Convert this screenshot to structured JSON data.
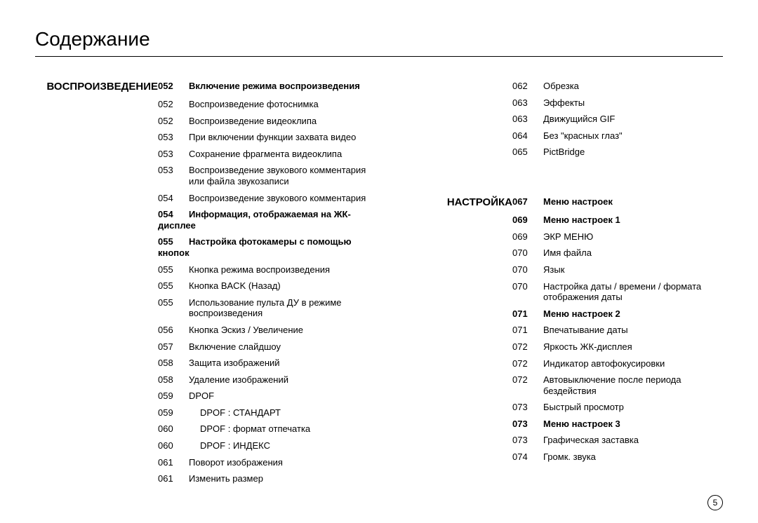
{
  "title": "Содержание",
  "page_number": "5",
  "columns": [
    {
      "rows": [
        {
          "section": "ВОСПРОИЗВЕДЕНИЕ",
          "num": "052",
          "text": "Включение режима воспроизведения",
          "bold": true
        },
        {
          "num": "052",
          "text": "Воспроизведение фотоснимка"
        },
        {
          "num": "052",
          "text": "Воспроизведение видеоклипа"
        },
        {
          "num": "053",
          "text": "При включении функции захвата видео"
        },
        {
          "num": "053",
          "text": "Сохранение фрагмента видеоклипа"
        },
        {
          "num": "053",
          "text": "Воспроизведение звукового комментария или файла звукозаписи"
        },
        {
          "num": "054",
          "text": "Воспроизведение звукового комментария"
        },
        {
          "num": "054",
          "text": "Информация, отображаемая на ЖК-дисплее",
          "bold": true,
          "span": true
        },
        {
          "num": "055",
          "text": "Настройка фотокамеры с помощью кнопок",
          "bold": true,
          "span": true
        },
        {
          "num": "055",
          "text": "Кнопка режима воспроизведения"
        },
        {
          "num": "055",
          "text": "Кнопка BACK (Назад)"
        },
        {
          "num": "055",
          "text": "Использование пульта ДУ в режиме воспроизведения"
        },
        {
          "num": "056",
          "text": "Кнопка Эскиз / Увеличение"
        },
        {
          "num": "057",
          "text": "Включение слайдшоу"
        },
        {
          "num": "058",
          "text": "Защита изображений"
        },
        {
          "num": "058",
          "text": "Удаление изображений"
        },
        {
          "num": "059",
          "text": "DPOF"
        },
        {
          "num": "059",
          "text": "DPOF : СТАНДАРТ",
          "indent": 1
        },
        {
          "num": "060",
          "text": "DPOF : формат отпечатка",
          "indent": 1
        },
        {
          "num": "060",
          "text": "DPOF : ИНДЕКС",
          "indent": 1
        },
        {
          "num": "061",
          "text": "Поворот изображения"
        },
        {
          "num": "061",
          "text": "Изменить размер"
        }
      ]
    },
    {
      "rows": [
        {
          "num": "062",
          "text": "Обрезка"
        },
        {
          "num": "063",
          "text": "Эффекты"
        },
        {
          "num": "063",
          "text": "Движущийся GIF"
        },
        {
          "num": "064",
          "text": "Без \"красных глаз\""
        },
        {
          "num": "065",
          "text": "PictBridge"
        },
        {
          "spacer": true
        },
        {
          "spacer": true
        },
        {
          "section": "НАСТРОЙКА",
          "num": "067",
          "text": "Меню настроек",
          "bold": true
        },
        {
          "num": "069",
          "text": "Меню настроек 1",
          "bold": true
        },
        {
          "num": "069",
          "text": "ЭКР МЕНЮ"
        },
        {
          "num": "070",
          "text": "Имя файла"
        },
        {
          "num": "070",
          "text": "Язык"
        },
        {
          "num": "070",
          "text": "Настройка даты / времени / формата отображения даты"
        },
        {
          "num": "071",
          "text": "Меню настроек 2",
          "bold": true
        },
        {
          "num": "071",
          "text": "Впечатывание даты"
        },
        {
          "num": "072",
          "text": "Яркость ЖК-дисплея"
        },
        {
          "num": "072",
          "text": "Индикатор автофокусировки"
        },
        {
          "num": "072",
          "text": "Автовыключение после периода бездействия"
        },
        {
          "num": "073",
          "text": "Быстрый просмотр"
        },
        {
          "num": "073",
          "text": "Меню настроек 3",
          "bold": true
        },
        {
          "num": "073",
          "text": "Графическая заставка"
        },
        {
          "num": "074",
          "text": "Громк. звука"
        }
      ]
    }
  ]
}
